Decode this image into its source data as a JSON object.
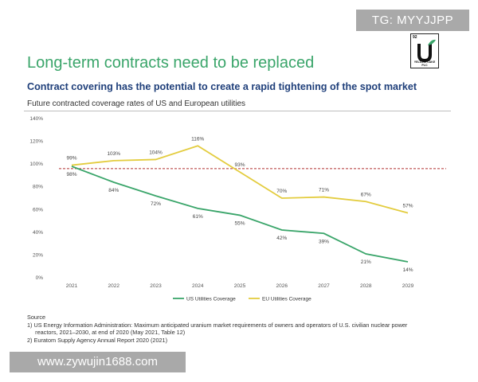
{
  "watermark_top": "TG: MYYJJPP",
  "watermark_bottom": "www.zywujin1688.com",
  "logo": {
    "number": "92",
    "name": "YELLOW CAKE PLC",
    "icon": "u-sprout-logo"
  },
  "title": "Long-term contracts need to be replaced",
  "subtitle": "Contract covering has the potential to create a rapid tightening of the spot market",
  "caption": "Future contracted coverage rates of US and European utilities",
  "colors": {
    "title": "#3aa56a",
    "subtitle": "#1f3f7a",
    "us": "#3aa56a",
    "eu": "#e3cc3e",
    "reference": "#b03030"
  },
  "chart_data": {
    "type": "line",
    "categories": [
      "2021",
      "2022",
      "2023",
      "2024",
      "2025",
      "2026",
      "2027",
      "2028",
      "2029"
    ],
    "ylim": [
      0,
      140
    ],
    "yticks": [
      "0%",
      "20%",
      "40%",
      "60%",
      "80%",
      "100%",
      "120%",
      "140%"
    ],
    "reference_line": 96,
    "series": [
      {
        "name": "US Utilities Coverage",
        "values": [
          98,
          84,
          72,
          61,
          55,
          42,
          39,
          21,
          14
        ],
        "labels": [
          "98%",
          "84%",
          "72%",
          "61%",
          "55%",
          "42%",
          "39%",
          "21%",
          "14%"
        ]
      },
      {
        "name": "EU Utilities Coverage",
        "values": [
          99,
          103,
          104,
          116,
          93,
          70,
          71,
          67,
          57
        ],
        "labels": [
          "99%",
          "103%",
          "104%",
          "116%",
          "93%",
          "70%",
          "71%",
          "67%",
          "57%"
        ]
      }
    ],
    "legend_position": "bottom-center",
    "grid": false
  },
  "source": {
    "heading": "Source",
    "notes": [
      "1)  US Energy Information Administration: Maximum anticipated uranium market requirements of owners and operators of U.S. civilian nuclear power",
      "     reactors, 2021–2030, at end of 2020 (May 2021, Table 12)",
      "2)  Euratom Supply Agency Annual Report 2020 (2021)"
    ]
  }
}
